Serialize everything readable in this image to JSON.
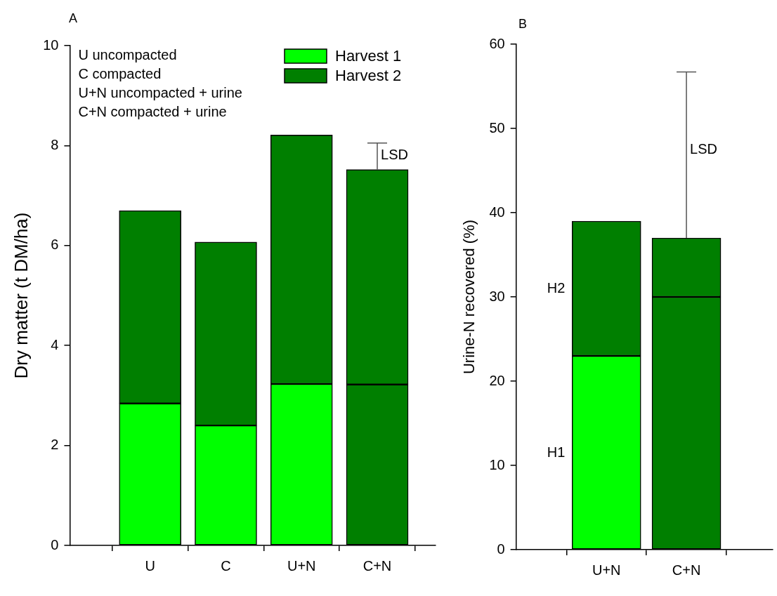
{
  "chart_data": [
    {
      "type": "bar",
      "title": "A",
      "ylabel": "Dry matter (t DM/ha)",
      "categories": [
        "U",
        "C",
        "U+N",
        "C+N"
      ],
      "stacked": true,
      "series": [
        {
          "name": "Harvest 1",
          "color": "#00ff00",
          "colors": [
            "#00ff00",
            "#00ff00",
            "#00ff00",
            "#007f00"
          ],
          "values": [
            2.84,
            2.4,
            3.23,
            3.22
          ]
        },
        {
          "name": "Harvest 2",
          "color": "#007f00",
          "values": [
            3.86,
            3.67,
            4.98,
            4.3
          ],
          "errors": [
            null,
            null,
            null,
            [
              7.52,
              8.05
            ]
          ]
        }
      ],
      "ylim": [
        0,
        10
      ],
      "yticks": [
        0,
        2,
        4,
        6,
        8,
        10
      ],
      "legend": "top right",
      "annotations": [
        "U uncompacted",
        "C compacted",
        "U+N uncompacted + urine",
        "C+N compacted + urine",
        {
          "text": "LSD",
          "x": "C+N",
          "y": 7.8
        }
      ]
    },
    {
      "type": "bar",
      "title": "B",
      "ylabel": "Urine-N recovered (%)",
      "categories": [
        "U+N",
        "C+N"
      ],
      "stacked": true,
      "series": [
        {
          "name": "H1",
          "colors": [
            "#00ff00",
            "#007f00"
          ],
          "values": [
            23,
            30
          ]
        },
        {
          "name": "H2",
          "color": "#007f00",
          "values": [
            16,
            7
          ],
          "errors": [
            null,
            [
              37,
              56.7
            ]
          ]
        }
      ],
      "ylim": [
        0,
        60
      ],
      "yticks": [
        0,
        10,
        20,
        30,
        40,
        50,
        60
      ],
      "annotations": [
        {
          "text": "LSD",
          "x": "C+N",
          "y": 47.5
        }
      ]
    }
  ]
}
